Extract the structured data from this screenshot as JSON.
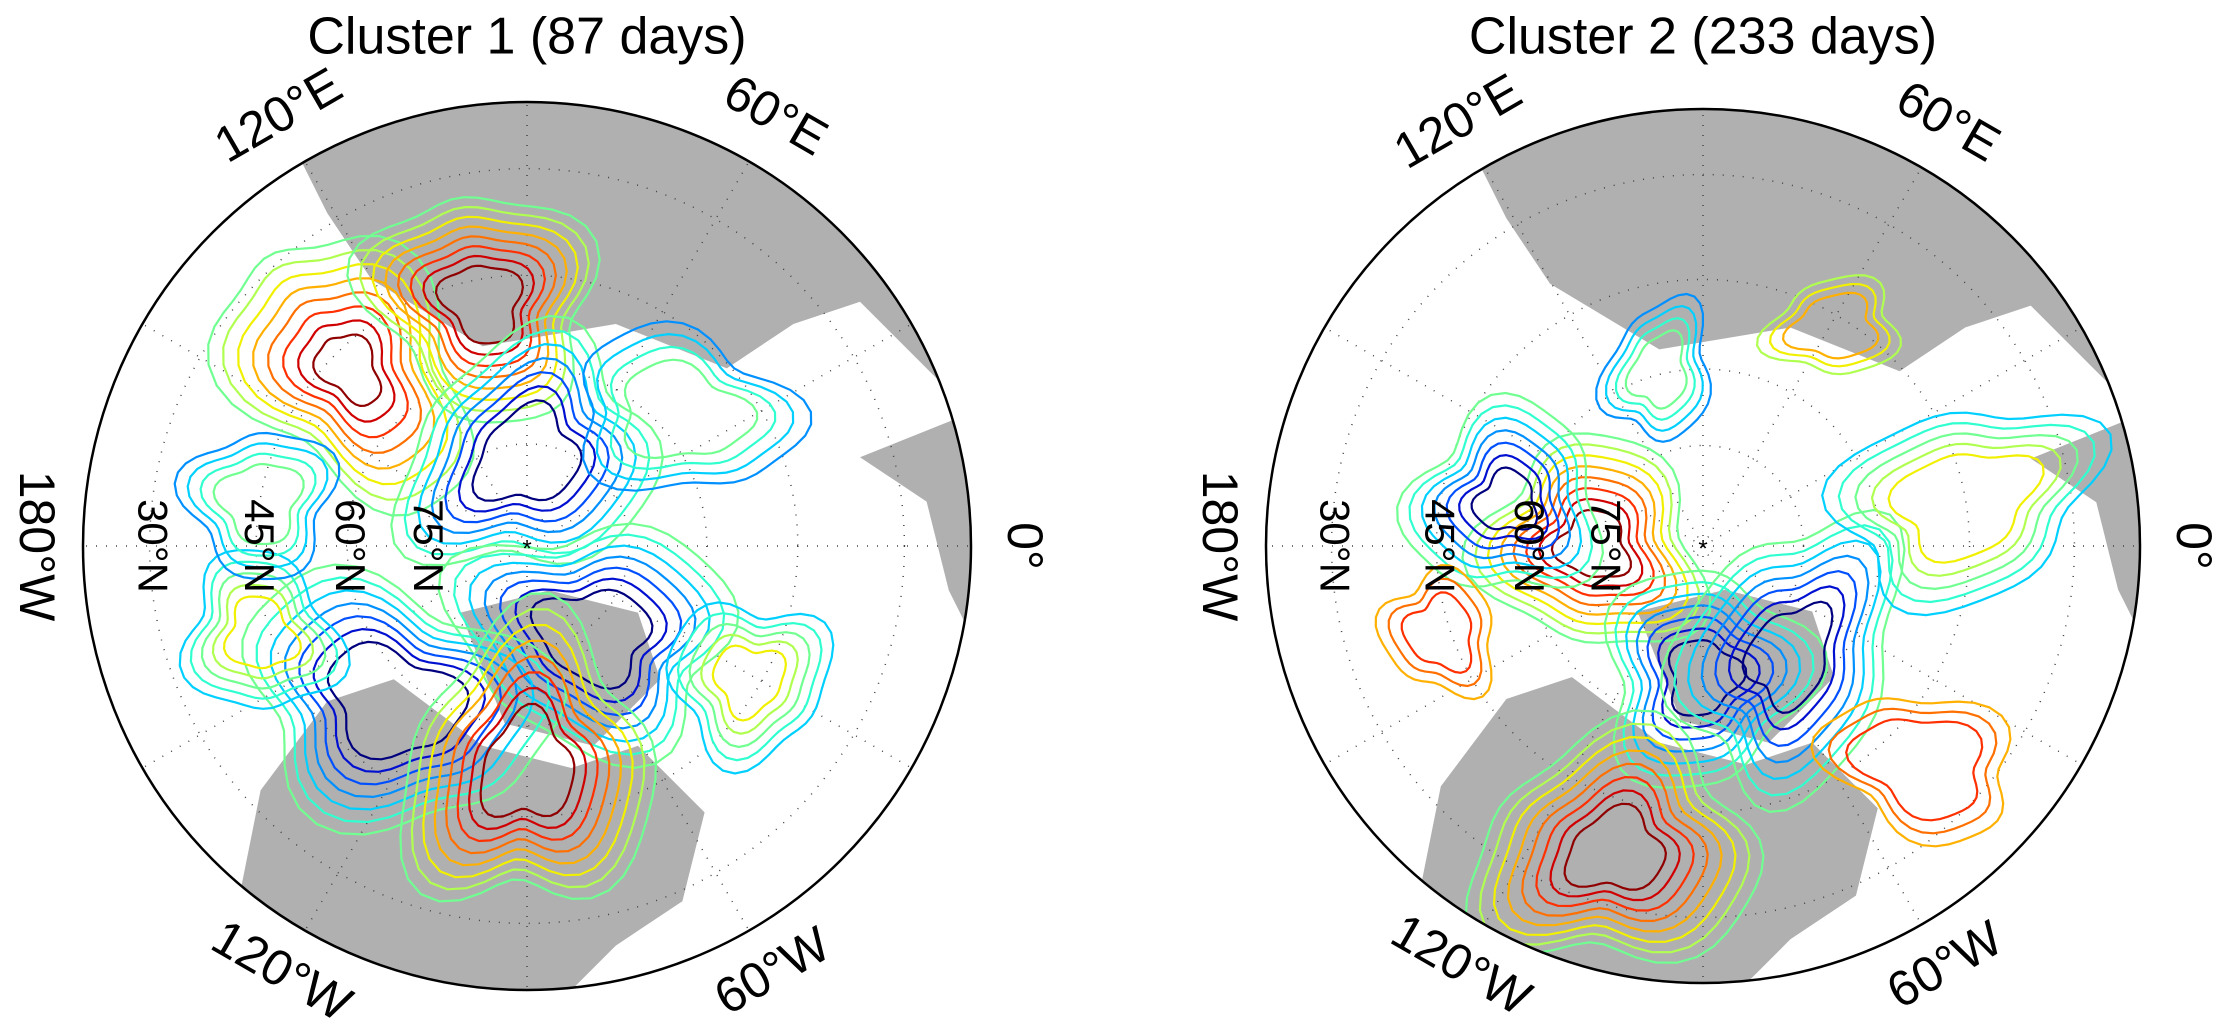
{
  "maps": [
    {
      "title": "Cluster 1  (87 days)",
      "longitude_labels": [
        "120°E",
        "60°E",
        "180°W",
        "0°",
        "120°W",
        "60°W"
      ],
      "latitude_labels": [
        "30°N",
        "45°N",
        "60°N",
        "75°N"
      ]
    },
    {
      "title": "Cluster 2  (233 days)",
      "longitude_labels": [
        "120°E",
        "60°E",
        "180°W",
        "0°",
        "120°W",
        "60°W"
      ],
      "latitude_labels": [
        "30°N",
        "45°N",
        "60°N",
        "75°N"
      ]
    }
  ]
}
